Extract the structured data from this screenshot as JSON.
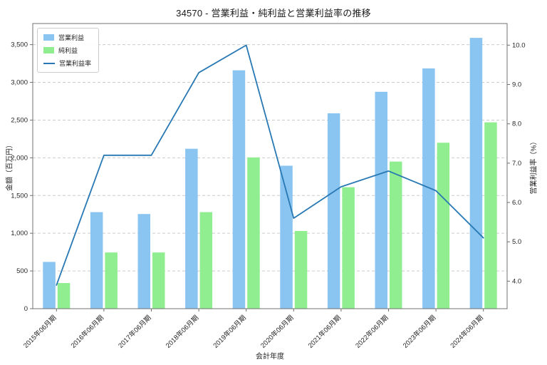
{
  "chart_data": {
    "type": "bar+line",
    "title": "34570 - 営業利益・純利益と営業利益率の推移",
    "xlabel": "会計年度",
    "ylabel_left": "金額（百万円）",
    "ylabel_right": "営業利益率（%）",
    "categories": [
      "2015年06月期",
      "2016年06月期",
      "2017年06月期",
      "2018年06月期",
      "2019年06月期",
      "2020年06月期",
      "2021年06月期",
      "2022年06月期",
      "2023年06月期",
      "2024年06月期"
    ],
    "series": [
      {
        "name": "営業利益",
        "type": "bar",
        "axis": "left",
        "color": "#8ac4f0",
        "values": [
          620,
          1280,
          1255,
          2120,
          3160,
          1895,
          2590,
          2875,
          3185,
          3590
        ]
      },
      {
        "name": "純利益",
        "type": "bar",
        "axis": "left",
        "color": "#90ee90",
        "values": [
          340,
          745,
          745,
          1280,
          2005,
          1030,
          1610,
          1950,
          2200,
          2470
        ]
      },
      {
        "name": "営業利益率",
        "type": "line",
        "axis": "right",
        "color": "#2878b4",
        "values": [
          3.9,
          7.2,
          7.2,
          9.3,
          10.0,
          5.6,
          6.4,
          6.8,
          6.3,
          5.1
        ]
      }
    ],
    "ylim_left": [
      0,
      3780
    ],
    "yticks_left": [
      0,
      500,
      1000,
      1500,
      2000,
      2500,
      3000,
      3500
    ],
    "ytick_labels_left": [
      "0",
      "500",
      "1,000",
      "1,500",
      "2,000",
      "2,500",
      "3,000",
      "3,500"
    ],
    "ylim_right": [
      3.3,
      10.55
    ],
    "yticks_right": [
      4.0,
      5.0,
      6.0,
      7.0,
      8.0,
      9.0,
      10.0
    ],
    "ytick_labels_right": [
      "4.0",
      "5.0",
      "6.0",
      "7.0",
      "8.0",
      "9.0",
      "10.0"
    ],
    "grid": "horizontal-dashed",
    "legend_position": "upper-left"
  }
}
